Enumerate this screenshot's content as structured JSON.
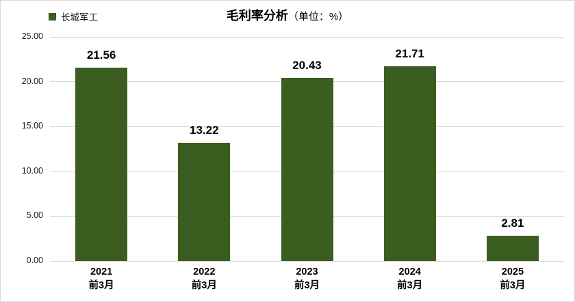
{
  "legend": {
    "label": "长城军工"
  },
  "title": {
    "main": "毛利率分析",
    "unit": "（单位：%）"
  },
  "chart_data": {
    "type": "bar",
    "title": "毛利率分析（单位：%）",
    "legend_entries": [
      "长城军工"
    ],
    "legend_position": "top-left",
    "categories": [
      "2021\n前3月",
      "2022\n前3月",
      "2023\n前3月",
      "2024\n前3月",
      "2025\n前3月"
    ],
    "series": [
      {
        "name": "长城军工",
        "values": [
          21.56,
          13.22,
          20.43,
          21.71,
          2.81
        ]
      }
    ],
    "value_labels": [
      "21.56",
      "13.22",
      "20.43",
      "21.71",
      "2.81"
    ],
    "xlabel": "",
    "ylabel": "",
    "ylim": [
      0,
      25
    ],
    "yticks": [
      0,
      5,
      10,
      15,
      20,
      25
    ],
    "ytick_labels": [
      "0.00",
      "5.00",
      "10.00",
      "15.00",
      "20.00",
      "25.00"
    ],
    "grid": true
  },
  "colors": {
    "bar": "#3b5e20",
    "gridline": "#c6e0b4",
    "baseline": "#d9d9d9",
    "border": "#d9d9d9",
    "text": "#1a1a1a"
  }
}
